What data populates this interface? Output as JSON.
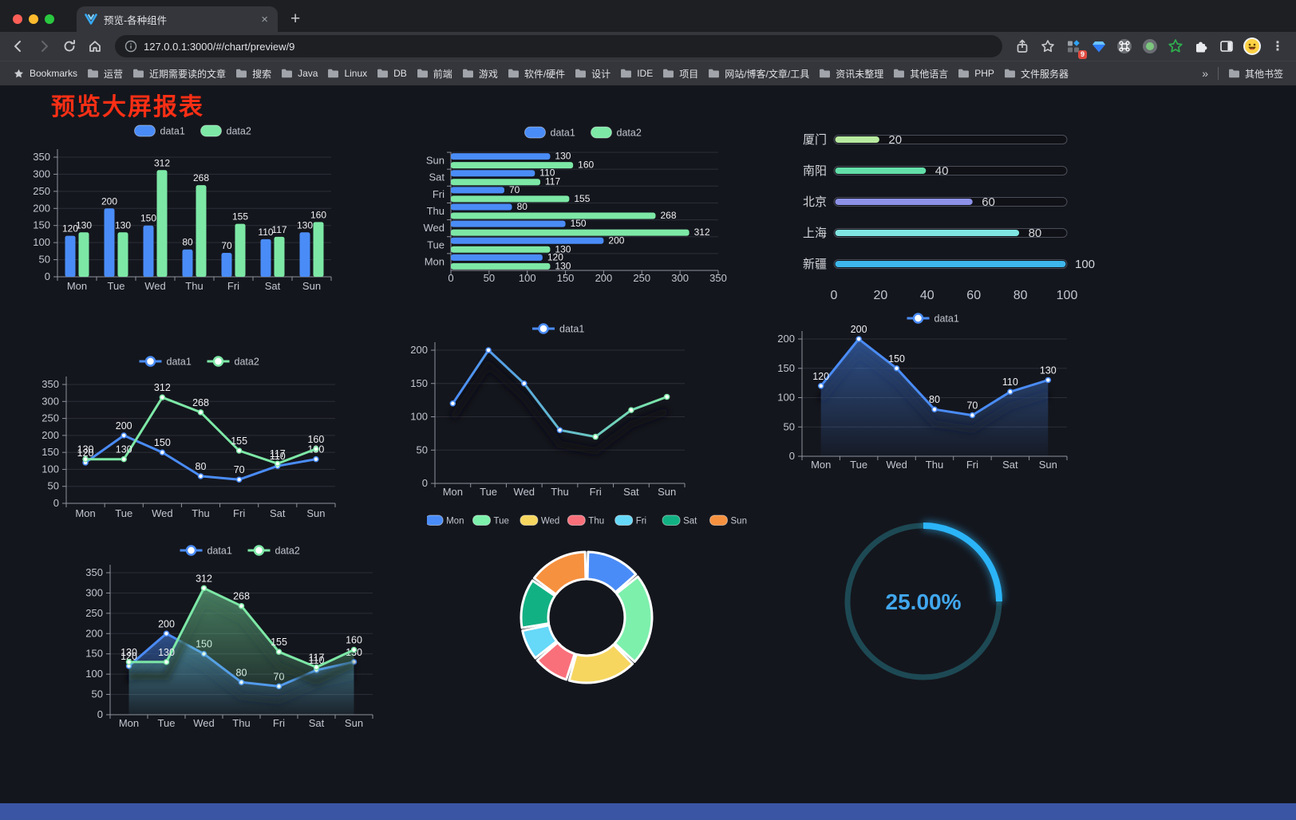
{
  "browser": {
    "tab_title": "预览-各种组件",
    "tab_close": "×",
    "new_tab": "+",
    "url": "127.0.0.1:3000/#/chart/preview/9",
    "extension_badge": "9",
    "menu_dots": "⋮",
    "bookmarks_label": "Bookmarks",
    "folders": [
      "运营",
      "近期需要读的文章",
      "搜索",
      "Java",
      "Linux",
      "DB",
      "前端",
      "游戏",
      "软件/硬件",
      "设计",
      "IDE",
      "项目",
      "网站/博客/文章/工具",
      "资讯未整理",
      "其他语言",
      "PHP",
      "文件服务器"
    ],
    "overflow_chevron": "»",
    "other_bookmarks": "其他书签"
  },
  "page": {
    "title": "预览大屏报表",
    "title_color": "#fb2f15",
    "background": "#14161d",
    "footer_color": "#3a55a3"
  },
  "chart_data": [
    {
      "id": "grouped-bar",
      "type": "bar",
      "categories": [
        "Mon",
        "Tue",
        "Wed",
        "Thu",
        "Fri",
        "Sat",
        "Sun"
      ],
      "series": [
        {
          "name": "data1",
          "color": "#4a8cf7",
          "values": [
            120,
            200,
            150,
            80,
            70,
            110,
            130
          ]
        },
        {
          "name": "data2",
          "color": "#7de8a6",
          "values": [
            130,
            130,
            312,
            268,
            155,
            117,
            160
          ]
        }
      ],
      "ylim": [
        0,
        350
      ],
      "ytick": 50,
      "legend_position": "top",
      "grid": true
    },
    {
      "id": "horizontal-bar",
      "type": "bar",
      "orientation": "horizontal",
      "categories": [
        "Sun",
        "Sat",
        "Fri",
        "Thu",
        "Wed",
        "Tue",
        "Mon"
      ],
      "series": [
        {
          "name": "data1",
          "color": "#4a8cf7",
          "values": [
            130,
            110,
            70,
            80,
            150,
            200,
            120
          ]
        },
        {
          "name": "data2",
          "color": "#7de8a6",
          "values": [
            160,
            117,
            155,
            268,
            312,
            130,
            130
          ]
        }
      ],
      "xlim": [
        0,
        350
      ],
      "xtick": 50,
      "legend_position": "top",
      "grid": true
    },
    {
      "id": "city-progress",
      "type": "bar",
      "orientation": "progress",
      "items": [
        {
          "label": "厦门",
          "value": 20,
          "color": "#b8e9a0"
        },
        {
          "label": "南阳",
          "value": 40,
          "color": "#63dfa9"
        },
        {
          "label": "北京",
          "value": 60,
          "color": "#8d92e8"
        },
        {
          "label": "上海",
          "value": 80,
          "color": "#80e5e1"
        },
        {
          "label": "新疆",
          "value": 100,
          "color": "#3eb7ea"
        }
      ],
      "xlim": [
        0,
        100
      ],
      "xticks": [
        0,
        20,
        40,
        60,
        80,
        100
      ]
    },
    {
      "id": "two-series-line",
      "type": "line",
      "categories": [
        "Mon",
        "Tue",
        "Wed",
        "Thu",
        "Fri",
        "Sat",
        "Sun"
      ],
      "series": [
        {
          "name": "data1",
          "color": "#4a8cf7",
          "values": [
            120,
            200,
            150,
            80,
            70,
            110,
            130
          ],
          "labels": true
        },
        {
          "name": "data2",
          "color": "#7de8a6",
          "values": [
            130,
            130,
            312,
            268,
            155,
            117,
            160
          ],
          "labels": true
        }
      ],
      "ylim": [
        0,
        350
      ],
      "ytick": 50,
      "legend_position": "top",
      "grid": true
    },
    {
      "id": "gradient-line",
      "type": "line",
      "categories": [
        "Mon",
        "Tue",
        "Wed",
        "Thu",
        "Fri",
        "Sat",
        "Sun"
      ],
      "series": [
        {
          "name": "data1",
          "color": "#4a8cf7",
          "gradient": [
            "#4a8cf7",
            "#7de8a6"
          ],
          "values": [
            120,
            200,
            150,
            80,
            70,
            110,
            130
          ],
          "shadow": true
        }
      ],
      "ylim": [
        0,
        200
      ],
      "ytick": 50,
      "legend_position": "top",
      "grid": true
    },
    {
      "id": "area-line",
      "type": "line",
      "categories": [
        "Mon",
        "Tue",
        "Wed",
        "Thu",
        "Fri",
        "Sat",
        "Sun"
      ],
      "series": [
        {
          "name": "data1",
          "color": "#4a8cf7",
          "values": [
            120,
            200,
            150,
            80,
            70,
            110,
            130
          ],
          "labels": true,
          "area": true,
          "shadow": true
        }
      ],
      "ylim": [
        0,
        200
      ],
      "ytick": 50,
      "legend_position": "top",
      "grid": true
    },
    {
      "id": "two-series-area-line",
      "type": "line",
      "categories": [
        "Mon",
        "Tue",
        "Wed",
        "Thu",
        "Fri",
        "Sat",
        "Sun"
      ],
      "series": [
        {
          "name": "data1",
          "color": "#4a8cf7",
          "values": [
            120,
            200,
            150,
            80,
            70,
            110,
            130
          ],
          "labels": true,
          "area": true,
          "shadow": true
        },
        {
          "name": "data2",
          "color": "#7de8a6",
          "values": [
            130,
            130,
            312,
            268,
            155,
            117,
            160
          ],
          "labels": true,
          "area": true,
          "shadow": true
        }
      ],
      "ylim": [
        0,
        350
      ],
      "ytick": 50,
      "legend_position": "top",
      "grid": true
    },
    {
      "id": "week-donut",
      "type": "pie",
      "items": [
        {
          "label": "Mon",
          "value": 120,
          "color": "#4a8cf7"
        },
        {
          "label": "Tue",
          "value": 200,
          "color": "#7df0ac"
        },
        {
          "label": "Wed",
          "value": 150,
          "color": "#f6d65f"
        },
        {
          "label": "Thu",
          "value": 80,
          "color": "#f9707b"
        },
        {
          "label": "Fri",
          "value": 70,
          "color": "#66d8f8"
        },
        {
          "label": "Sat",
          "value": 110,
          "color": "#12b183"
        },
        {
          "label": "Sun",
          "value": 130,
          "color": "#f6913f"
        }
      ],
      "legend_position": "top"
    },
    {
      "id": "percent-gauge",
      "type": "gauge",
      "value": 25,
      "display": "25.00%",
      "color": "#2bb4f8",
      "track": "#1d4954",
      "text_color": "#41a7ee"
    }
  ]
}
